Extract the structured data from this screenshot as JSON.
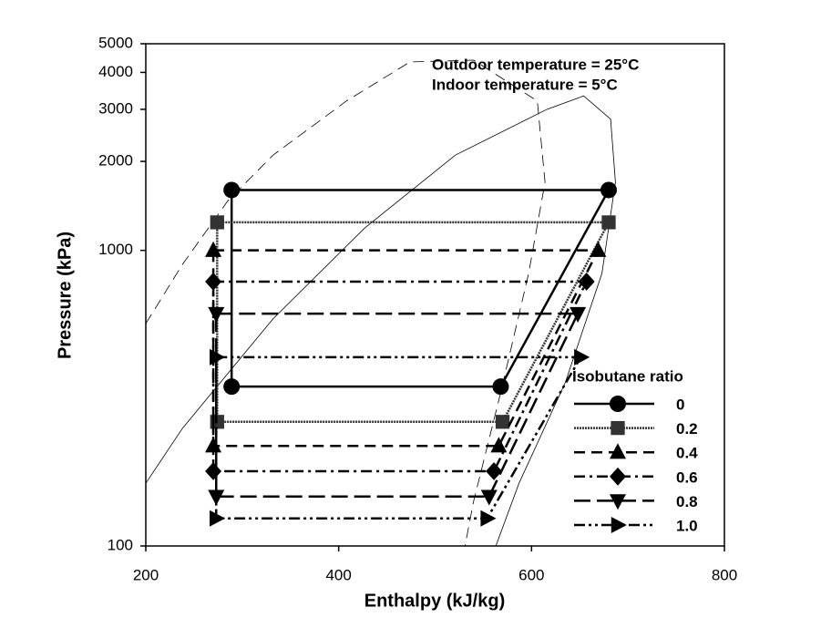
{
  "chart_data": {
    "type": "line",
    "xlabel": "Enthalpy (kJ/kg)",
    "ylabel": "Pressure (kPa)",
    "annotations": [
      "Outdoor temperature = 25°C",
      "Indoor temperature = 5°C"
    ],
    "legend_title": "Isobutane ratio",
    "xlim": [
      200,
      800
    ],
    "ylim": [
      100,
      5000
    ],
    "xticks": [
      200,
      400,
      600,
      800
    ],
    "yticks": [
      100,
      1000,
      2000,
      3000,
      4000,
      5000
    ],
    "log_y": true,
    "legend_position": "lower right",
    "curves": [
      {
        "dash": "solid",
        "color": "#000000",
        "x": [
          200,
          238,
          332,
          427,
          521,
          616,
          654,
          682,
          687,
          673,
          635,
          587,
          563
        ],
        "values": [
          163,
          250,
          587,
          1190,
          2100,
          3000,
          3330,
          2780,
          1700,
          836,
          357,
          163,
          100
        ]
      },
      {
        "dash": "dashed",
        "color": "#000000",
        "x": [
          200,
          238,
          285,
          332,
          408,
          474,
          540,
          606,
          614,
          597,
          568,
          540,
          531
        ],
        "values": [
          565,
          896,
          1470,
          2100,
          3200,
          4340,
          4400,
          3200,
          1700,
          836,
          330,
          142,
          100
        ]
      }
    ],
    "series": [
      {
        "name": "0",
        "color": "#000000",
        "marker": "circle",
        "dash": "solid",
        "x": [
          289,
          680,
          568,
          289
        ],
        "values": [
          1600,
          1600,
          346,
          346
        ]
      },
      {
        "name": "0.2",
        "color": "#333333",
        "marker": "square",
        "dash": "dotted",
        "x": [
          274,
          680,
          570,
          274
        ],
        "values": [
          1244,
          1244,
          263,
          263
        ]
      },
      {
        "name": "0.4",
        "color": "#000000",
        "marker": "triangle-up",
        "dash": "dashed",
        "x": [
          270,
          669,
          566,
          270
        ],
        "values": [
          1000,
          1000,
          218,
          218
        ]
      },
      {
        "name": "0.6",
        "color": "#000000",
        "marker": "diamond",
        "dash": "dashdot",
        "x": [
          270,
          657,
          561,
          270
        ],
        "values": [
          784,
          784,
          179,
          179
        ]
      },
      {
        "name": "0.8",
        "color": "#000000",
        "marker": "triangle-down",
        "dash": "longdash",
        "x": [
          273,
          648,
          556,
          273
        ],
        "values": [
          611,
          611,
          147,
          147
        ]
      },
      {
        "name": "1.0",
        "color": "#000000",
        "marker": "triangle-right",
        "dash": "dashdotdot",
        "x": [
          273,
          651,
          554,
          273
        ],
        "values": [
          435,
          435,
          124,
          124
        ]
      }
    ]
  }
}
